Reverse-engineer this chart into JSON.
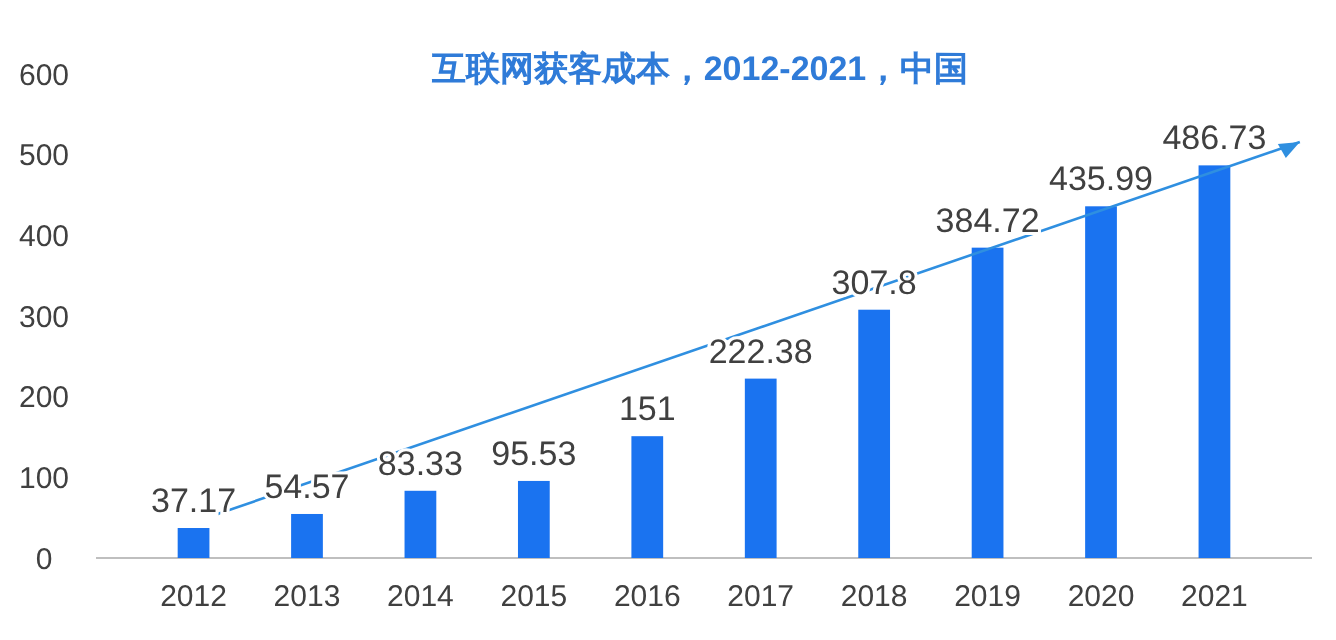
{
  "chart_data": {
    "type": "bar",
    "title": "互联网获客成本，2012-2021，中国",
    "categories": [
      "2012",
      "2013",
      "2014",
      "2015",
      "2016",
      "2017",
      "2018",
      "2019",
      "2020",
      "2021"
    ],
    "values": [
      37.17,
      54.57,
      83.33,
      95.53,
      151,
      222.38,
      307.8,
      384.72,
      435.99,
      486.73
    ],
    "color": "#1a73f0",
    "ylim": [
      0,
      600
    ],
    "yticks": [
      0,
      100,
      200,
      300,
      400,
      500,
      600
    ],
    "data_labels": true,
    "grid": false
  }
}
